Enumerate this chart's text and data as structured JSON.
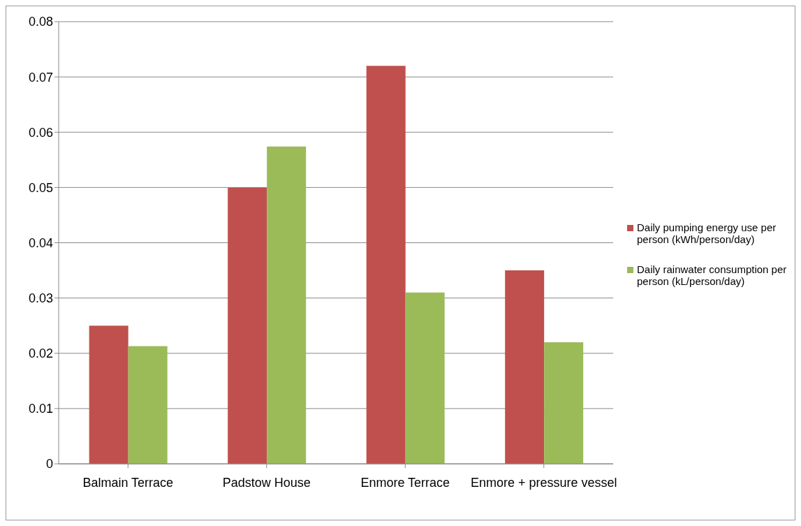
{
  "chart_data": {
    "type": "bar",
    "categories": [
      "Balmain Terrace",
      "Padstow House",
      "Enmore Terrace",
      "Enmore + pressure vessel"
    ],
    "series": [
      {
        "name": "Daily pumping energy use per person (kWh/person/day)",
        "color": "#c0504d",
        "values": [
          0.025,
          0.05,
          0.072,
          0.035
        ]
      },
      {
        "name": "Daily rainwater consumption per person (kL/person/day)",
        "color": "#9bbb59",
        "values": [
          0.0213,
          0.0574,
          0.031,
          0.022
        ]
      }
    ],
    "ylim": [
      0,
      0.08
    ],
    "yticks": [
      0,
      0.01,
      0.02,
      0.03,
      0.04,
      0.05,
      0.06,
      0.07,
      0.08
    ],
    "grid": "y",
    "legend": "right"
  }
}
